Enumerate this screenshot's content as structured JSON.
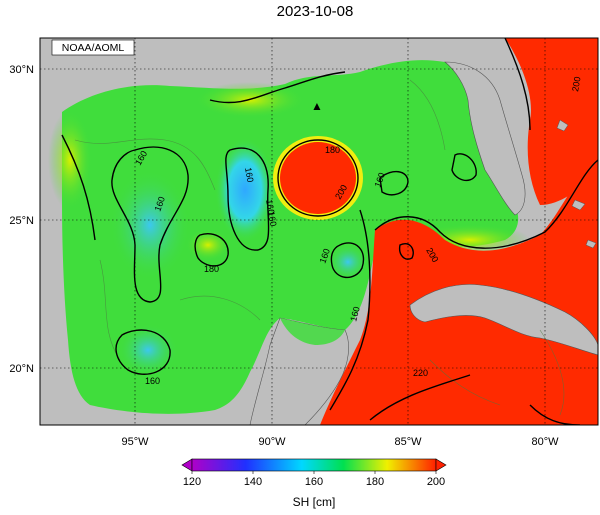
{
  "title": "2023-10-08",
  "credit": "NOAA/AOML",
  "lat_labels": [
    "30°N",
    "25°N",
    "20°N"
  ],
  "lon_labels": [
    "95°W",
    "90°W",
    "85°W",
    "80°W"
  ],
  "contour_labels": [
    "160",
    "160",
    "160",
    "160",
    "160",
    "160",
    "160",
    "160",
    "180",
    "180",
    "200",
    "200",
    "200",
    "220",
    "160"
  ],
  "colorbar": {
    "label": "SH [cm]",
    "ticks": [
      "120",
      "140",
      "160",
      "180",
      "200"
    ],
    "range": [
      120,
      200
    ],
    "stops": [
      "#b000c8",
      "#2030ff",
      "#00d8ff",
      "#00e050",
      "#f0f000",
      "#ff2000"
    ]
  },
  "colors": {
    "land": "#bebebe",
    "background_field": "#40dd3c",
    "loop_current": "#ff2a00",
    "eddy_low": "#33d6e8",
    "grid": "#000000"
  },
  "marker": {
    "type": "triangle",
    "symbol": "▲"
  }
}
